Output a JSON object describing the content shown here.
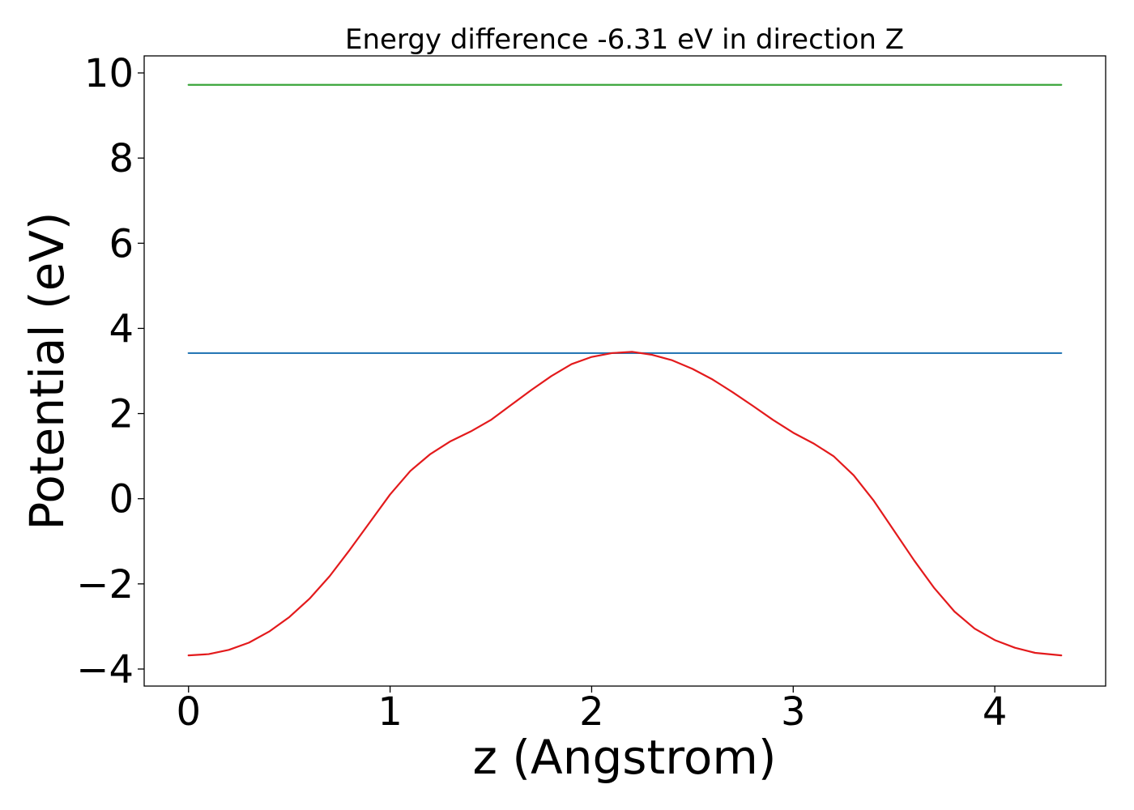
{
  "chart_data": {
    "type": "line",
    "title": "Energy difference -6.31 eV in direction Z",
    "xlabel": "z (Angstrom)",
    "ylabel": "Potential (eV)",
    "xlim": [
      -0.22,
      4.55
    ],
    "ylim": [
      -4.4,
      10.4
    ],
    "xticks": [
      0,
      1,
      2,
      3,
      4
    ],
    "xtick_labels": [
      "0",
      "1",
      "2",
      "3",
      "4"
    ],
    "yticks": [
      -4,
      -2,
      0,
      2,
      4,
      6,
      8,
      10
    ],
    "ytick_labels": [
      "−4",
      "−2",
      "0",
      "2",
      "4",
      "6",
      "8",
      "10"
    ],
    "grid": false,
    "colors": {
      "potential": "#e31a1c",
      "vacuum": "#2878b5",
      "reference": "#3aa53a"
    },
    "series": [
      {
        "x": [
          0,
          0.1,
          0.2,
          0.3,
          0.4,
          0.5,
          0.6,
          0.7,
          0.8,
          0.9,
          1.0,
          1.1,
          1.2,
          1.3,
          1.4,
          1.5,
          1.6,
          1.7,
          1.8,
          1.9,
          2.0,
          2.1,
          2.2,
          2.3,
          2.4,
          2.5,
          2.6,
          2.7,
          2.8,
          2.9,
          3.0,
          3.1,
          3.2,
          3.3,
          3.4,
          3.5,
          3.6,
          3.7,
          3.8,
          3.9,
          4.0,
          4.1,
          4.2,
          4.33
        ],
        "y": [
          -3.68,
          -3.65,
          -3.55,
          -3.38,
          -3.12,
          -2.78,
          -2.35,
          -1.82,
          -1.2,
          -0.55,
          0.1,
          0.65,
          1.05,
          1.35,
          1.58,
          1.85,
          2.2,
          2.55,
          2.88,
          3.16,
          3.33,
          3.42,
          3.45,
          3.38,
          3.25,
          3.05,
          2.8,
          2.5,
          2.18,
          1.85,
          1.55,
          1.3,
          1.0,
          0.55,
          -0.05,
          -0.75,
          -1.45,
          -2.1,
          -2.65,
          -3.05,
          -3.32,
          -3.5,
          -3.62,
          -3.68
        ]
      },
      {
        "x": [
          0,
          4.33
        ],
        "y": [
          3.42,
          3.42
        ]
      },
      {
        "x": [
          0,
          4.33
        ],
        "y": [
          9.72,
          9.72
        ]
      }
    ]
  }
}
